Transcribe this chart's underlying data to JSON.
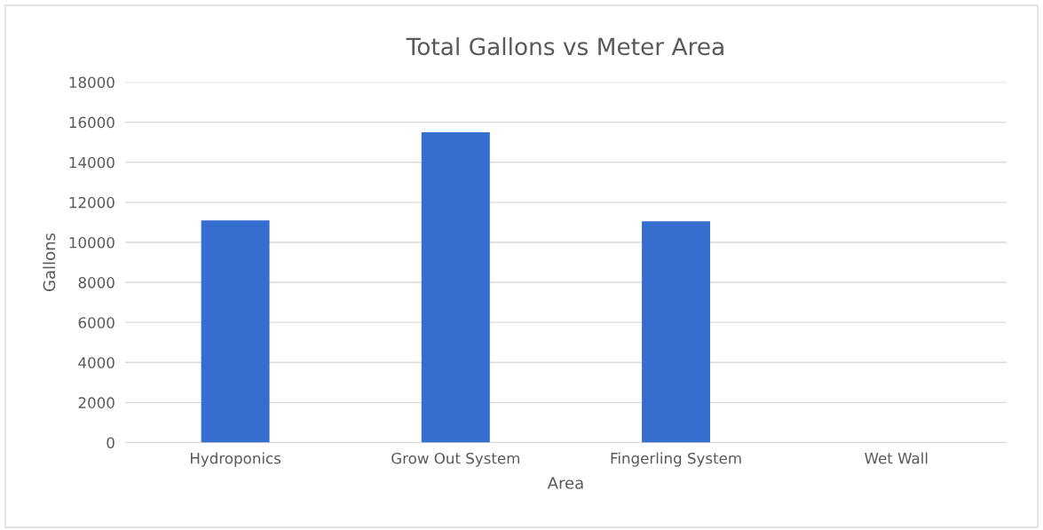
{
  "chart_data": {
    "type": "bar",
    "title": "Total Gallons vs Meter Area",
    "xlabel": "Area",
    "ylabel": "Gallons",
    "categories": [
      "Hydroponics",
      "Grow Out System",
      "Fingerling System",
      "Wet Wall"
    ],
    "values": [
      11100,
      15500,
      11050,
      0
    ],
    "color": "#366ecf",
    "ylim": [
      0,
      18000
    ],
    "yticks": [
      0,
      2000,
      4000,
      6000,
      8000,
      10000,
      12000,
      14000,
      16000,
      18000
    ],
    "grid": "y"
  }
}
